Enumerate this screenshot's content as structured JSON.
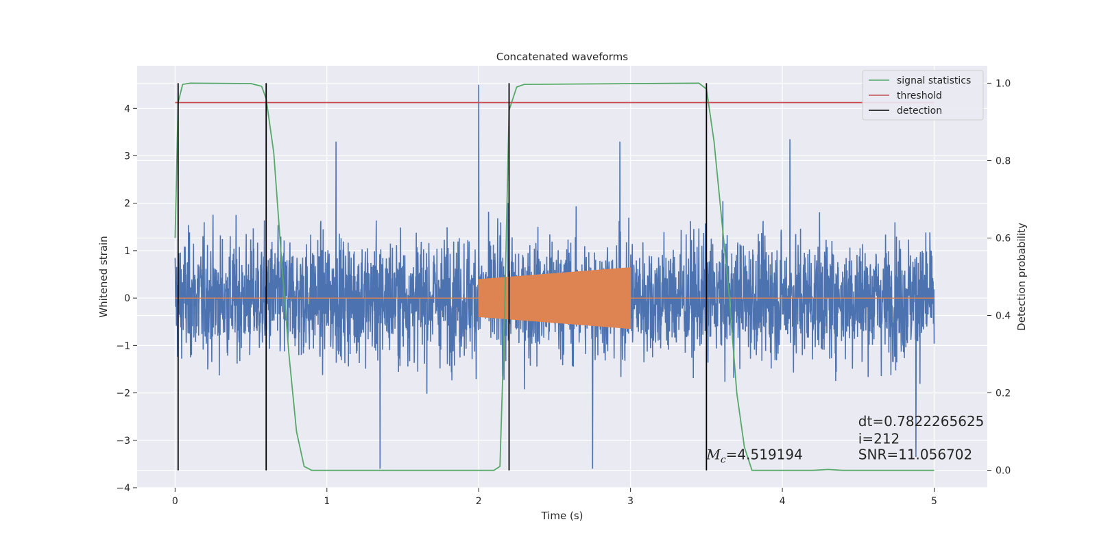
{
  "chart_data": {
    "type": "line",
    "title": "Concatenated waveforms",
    "xlabel": "Time (s)",
    "ylabel": "Whitened strain",
    "y2label": "Detection probability",
    "xlim": [
      -0.25,
      5.35
    ],
    "ylim": [
      -4.0,
      4.9
    ],
    "y2lim": [
      -0.045,
      1.045
    ],
    "x_ticks": [
      0,
      1,
      2,
      3,
      4,
      5
    ],
    "y_ticks": [
      -4,
      -3,
      -2,
      -1,
      0,
      1,
      2,
      3,
      4
    ],
    "y2_ticks": [
      0.0,
      0.2,
      0.4,
      0.6,
      0.8,
      1.0
    ],
    "grid": true,
    "legend_position": "top-right",
    "legend": [
      {
        "label": "signal statistics",
        "color": "#55a868"
      },
      {
        "label": "threshold",
        "color": "#c44e52"
      },
      {
        "label": "detection",
        "color": "#000000"
      }
    ],
    "series": [
      {
        "name": "whitened-strain",
        "color": "#4c72b0",
        "kind": "noise",
        "x_range": [
          0,
          5
        ],
        "amplitude_typical": 1.4,
        "peaks": [
          {
            "x": 2.0,
            "y": 4.5
          },
          {
            "x": 1.35,
            "y": -3.6
          },
          {
            "x": 2.75,
            "y": -3.6
          },
          {
            "x": 4.88,
            "y": -3.35
          },
          {
            "x": 1.06,
            "y": 3.3
          },
          {
            "x": 2.93,
            "y": 3.3
          },
          {
            "x": 4.05,
            "y": 3.35
          }
        ]
      },
      {
        "name": "injected-chirp",
        "color": "#dd8452",
        "kind": "chirp",
        "x_range": [
          0,
          5
        ],
        "chirp_start": 2.0,
        "chirp_end": 3.0,
        "amplitude_start": 0.4,
        "amplitude_end": 0.65
      },
      {
        "name": "signal statistics",
        "color": "#55a868",
        "axis": "right",
        "x": [
          0.0,
          0.02,
          0.05,
          0.1,
          0.5,
          0.57,
          0.6,
          0.65,
          0.7,
          0.75,
          0.8,
          0.85,
          0.9,
          2.1,
          2.14,
          2.17,
          2.2,
          2.25,
          2.3,
          3.45,
          3.5,
          3.55,
          3.6,
          3.65,
          3.7,
          3.75,
          3.8,
          4.2,
          4.3,
          4.4,
          5.0
        ],
        "y": [
          0.6,
          0.95,
          0.997,
          1.0,
          0.999,
          0.992,
          0.96,
          0.82,
          0.55,
          0.3,
          0.1,
          0.01,
          0.0,
          0.0,
          0.01,
          0.4,
          0.93,
          0.99,
          0.997,
          1.0,
          0.985,
          0.85,
          0.65,
          0.45,
          0.2,
          0.06,
          0.0,
          0.0,
          0.002,
          0.0,
          0.0
        ]
      },
      {
        "name": "threshold",
        "color": "#c44e52",
        "axis": "right",
        "x": [
          0,
          5
        ],
        "y": [
          0.95,
          0.95
        ]
      }
    ],
    "detections": [
      0.02,
      0.6,
      2.2,
      3.5
    ],
    "annotations": [
      {
        "text": "=4.519194",
        "prefix": "M",
        "subscript": "c",
        "x": 3.5,
        "y": -3.4
      },
      {
        "text": "dt=0.7822265625",
        "x": 4.5,
        "y": -2.7
      },
      {
        "text": " i=212",
        "x": 4.5,
        "y": -3.07
      },
      {
        "text": "SNR=11.056702",
        "x": 4.5,
        "y": -3.4
      }
    ]
  }
}
